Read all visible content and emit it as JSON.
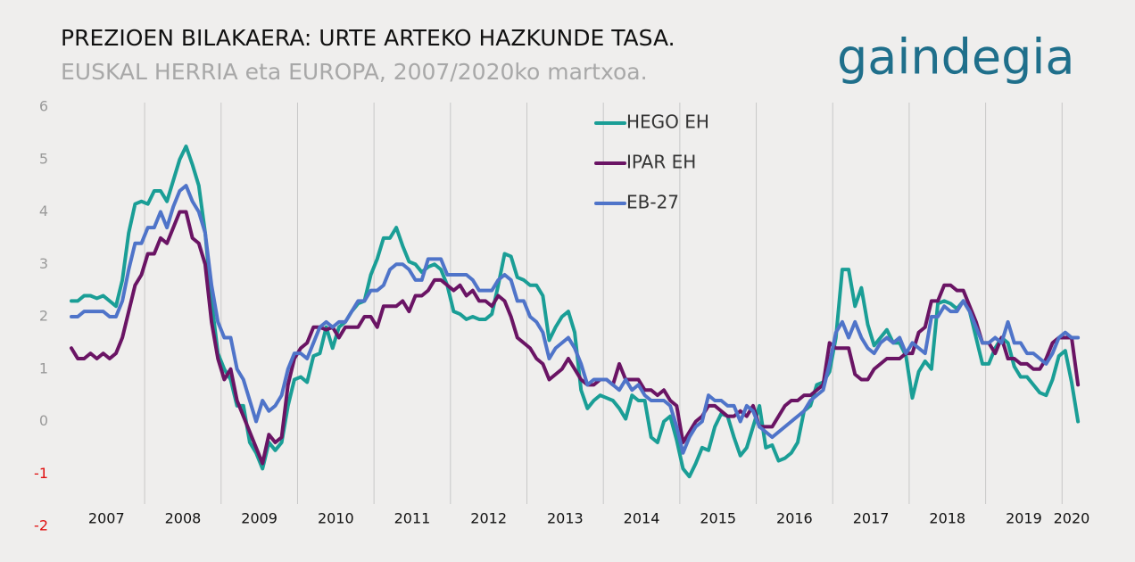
{
  "chart_data": {
    "type": "line",
    "title": "PREZIOEN BILAKAERA: URTE ARTEKO HAZKUNDE TASA.",
    "subtitle": "EUSKAL HERRIA eta EUROPA, 2007/2020ko  martxoa.",
    "logo": "gaindegia",
    "categories": [
      "2007",
      null,
      null,
      null,
      null,
      null,
      null,
      null,
      null,
      null,
      null,
      null,
      "2008",
      null,
      null,
      null,
      null,
      null,
      null,
      null,
      null,
      null,
      null,
      null,
      "2009",
      null,
      null,
      null,
      null,
      null,
      null,
      null,
      null,
      null,
      null,
      null,
      "2010",
      null,
      null,
      null,
      null,
      null,
      null,
      null,
      null,
      null,
      null,
      null,
      "2011",
      null,
      null,
      null,
      null,
      null,
      null,
      null,
      null,
      null,
      null,
      null,
      "2012",
      null,
      null,
      null,
      null,
      null,
      null,
      null,
      null,
      null,
      null,
      null,
      "2013",
      null,
      null,
      null,
      null,
      null,
      null,
      null,
      null,
      null,
      null,
      null,
      "2014",
      null,
      null,
      null,
      null,
      null,
      null,
      null,
      null,
      null,
      null,
      null,
      "2015",
      null,
      null,
      null,
      null,
      null,
      null,
      null,
      null,
      null,
      null,
      null,
      "2016",
      null,
      null,
      null,
      null,
      null,
      null,
      null,
      null,
      null,
      null,
      null,
      "2017",
      null,
      null,
      null,
      null,
      null,
      null,
      null,
      null,
      null,
      null,
      null,
      "2018",
      null,
      null,
      null,
      null,
      null,
      null,
      null,
      null,
      null,
      null,
      null,
      "2019",
      null,
      null,
      null,
      null,
      null,
      null,
      null,
      null,
      null,
      null,
      null,
      "2020",
      null,
      null
    ],
    "series": [
      {
        "name": "HEGO EH",
        "color": "#1a9e96",
        "values": [
          2.3,
          2.3,
          2.4,
          2.4,
          2.35,
          2.4,
          2.3,
          2.2,
          2.7,
          3.6,
          4.15,
          4.2,
          4.15,
          4.4,
          4.4,
          4.2,
          4.6,
          5.0,
          5.25,
          4.9,
          4.5,
          3.6,
          2.3,
          1.3,
          1.0,
          0.8,
          0.3,
          0.3,
          -0.4,
          -0.6,
          -0.9,
          -0.4,
          -0.55,
          -0.4,
          0.3,
          0.8,
          0.85,
          0.75,
          1.25,
          1.3,
          1.8,
          1.4,
          1.8,
          1.9,
          2.1,
          2.25,
          2.3,
          2.8,
          3.1,
          3.5,
          3.5,
          3.7,
          3.35,
          3.05,
          3.0,
          2.85,
          2.95,
          3.0,
          2.9,
          2.6,
          2.1,
          2.05,
          1.95,
          2.0,
          1.95,
          1.95,
          2.05,
          2.6,
          3.2,
          3.15,
          2.75,
          2.7,
          2.6,
          2.6,
          2.4,
          1.55,
          1.8,
          2.0,
          2.1,
          1.7,
          0.6,
          0.25,
          0.4,
          0.5,
          0.45,
          0.4,
          0.25,
          0.05,
          0.5,
          0.4,
          0.4,
          -0.3,
          -0.4,
          0.0,
          0.1,
          -0.35,
          -0.9,
          -1.05,
          -0.8,
          -0.5,
          -0.55,
          -0.1,
          0.15,
          0.1,
          -0.3,
          -0.65,
          -0.5,
          -0.1,
          0.3,
          -0.5,
          -0.45,
          -0.75,
          -0.7,
          -0.6,
          -0.4,
          0.2,
          0.3,
          0.7,
          0.75,
          0.95,
          1.6,
          2.9,
          2.9,
          2.2,
          2.55,
          1.85,
          1.45,
          1.6,
          1.75,
          1.5,
          1.5,
          1.25,
          0.45,
          0.95,
          1.15,
          1.0,
          2.25,
          2.3,
          2.25,
          2.15,
          2.3,
          2.1,
          1.6,
          1.1,
          1.1,
          1.4,
          1.6,
          1.5,
          1.05,
          0.85,
          0.85,
          0.7,
          0.55,
          0.5,
          0.8,
          1.25,
          1.35,
          0.75,
          0.0
        ]
      },
      {
        "name": "IPAR EH",
        "color": "#6a1464",
        "values": [
          1.4,
          1.2,
          1.2,
          1.3,
          1.2,
          1.3,
          1.2,
          1.3,
          1.6,
          2.1,
          2.6,
          2.8,
          3.2,
          3.2,
          3.5,
          3.4,
          3.7,
          4.0,
          4.0,
          3.5,
          3.4,
          3.0,
          1.9,
          1.2,
          0.8,
          1.0,
          0.4,
          0.1,
          -0.2,
          -0.5,
          -0.8,
          -0.25,
          -0.4,
          -0.3,
          0.7,
          1.2,
          1.4,
          1.5,
          1.8,
          1.8,
          1.75,
          1.8,
          1.6,
          1.8,
          1.8,
          1.8,
          2.0,
          2.0,
          1.8,
          2.2,
          2.2,
          2.2,
          2.3,
          2.1,
          2.4,
          2.4,
          2.5,
          2.7,
          2.7,
          2.6,
          2.5,
          2.6,
          2.4,
          2.5,
          2.3,
          2.3,
          2.2,
          2.4,
          2.3,
          2.0,
          1.6,
          1.5,
          1.4,
          1.2,
          1.1,
          0.8,
          0.9,
          1.0,
          1.2,
          1.0,
          0.8,
          0.7,
          0.7,
          0.8,
          0.8,
          0.7,
          1.1,
          0.8,
          0.8,
          0.8,
          0.6,
          0.6,
          0.5,
          0.6,
          0.4,
          0.3,
          -0.4,
          -0.2,
          0.0,
          0.1,
          0.3,
          0.3,
          0.2,
          0.1,
          0.1,
          0.2,
          0.1,
          0.3,
          -0.1,
          -0.1,
          -0.1,
          0.1,
          0.3,
          0.4,
          0.4,
          0.5,
          0.5,
          0.6,
          0.7,
          1.5,
          1.4,
          1.4,
          1.4,
          0.9,
          0.8,
          0.8,
          1.0,
          1.1,
          1.2,
          1.2,
          1.2,
          1.3,
          1.3,
          1.7,
          1.8,
          2.3,
          2.3,
          2.6,
          2.6,
          2.5,
          2.5,
          2.2,
          1.9,
          1.5,
          1.5,
          1.3,
          1.6,
          1.2,
          1.2,
          1.1,
          1.1,
          1.0,
          1.0,
          1.2,
          1.5,
          1.6,
          1.6,
          1.6,
          0.7
        ]
      },
      {
        "name": "EB-27",
        "color": "#4f74c9",
        "values": [
          2.0,
          2.0,
          2.1,
          2.1,
          2.1,
          2.1,
          2.0,
          2.0,
          2.3,
          2.9,
          3.4,
          3.4,
          3.7,
          3.7,
          4.0,
          3.7,
          4.1,
          4.4,
          4.5,
          4.2,
          4.0,
          3.6,
          2.6,
          1.9,
          1.6,
          1.6,
          1.0,
          0.8,
          0.4,
          0.0,
          0.4,
          0.2,
          0.3,
          0.5,
          1.0,
          1.3,
          1.3,
          1.2,
          1.5,
          1.8,
          1.9,
          1.8,
          1.9,
          1.9,
          2.1,
          2.3,
          2.3,
          2.5,
          2.5,
          2.6,
          2.9,
          3.0,
          3.0,
          2.9,
          2.7,
          2.7,
          3.1,
          3.1,
          3.1,
          2.8,
          2.8,
          2.8,
          2.8,
          2.7,
          2.5,
          2.5,
          2.5,
          2.7,
          2.8,
          2.7,
          2.3,
          2.3,
          2.0,
          1.9,
          1.7,
          1.2,
          1.4,
          1.5,
          1.6,
          1.4,
          1.1,
          0.7,
          0.8,
          0.8,
          0.8,
          0.7,
          0.6,
          0.8,
          0.6,
          0.7,
          0.5,
          0.4,
          0.4,
          0.4,
          0.3,
          -0.1,
          -0.6,
          -0.3,
          -0.1,
          0.0,
          0.5,
          0.4,
          0.4,
          0.3,
          0.3,
          0.0,
          0.3,
          0.2,
          -0.1,
          -0.2,
          -0.3,
          -0.2,
          -0.1,
          0.0,
          0.1,
          0.2,
          0.4,
          0.5,
          0.6,
          1.1,
          1.7,
          1.9,
          1.6,
          1.9,
          1.6,
          1.4,
          1.3,
          1.5,
          1.6,
          1.5,
          1.6,
          1.3,
          1.5,
          1.4,
          1.3,
          2.0,
          2.0,
          2.2,
          2.1,
          2.1,
          2.3,
          2.1,
          1.8,
          1.5,
          1.5,
          1.6,
          1.5,
          1.9,
          1.5,
          1.5,
          1.3,
          1.3,
          1.2,
          1.1,
          1.3,
          1.6,
          1.7,
          1.6,
          1.6
        ]
      }
    ],
    "ylim": [
      -2,
      6
    ],
    "yticks": [
      -2,
      -1,
      0,
      1,
      2,
      3,
      4,
      5,
      6
    ],
    "legend": "top"
  }
}
